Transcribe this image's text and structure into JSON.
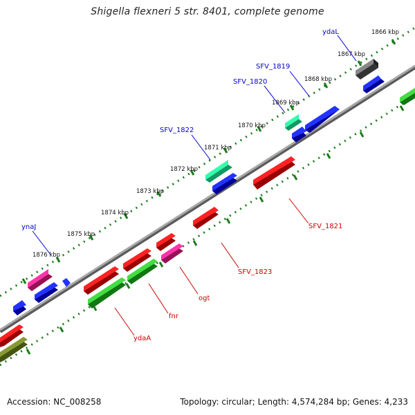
{
  "title": "Shigella flexneri 5 str. 8401, complete genome",
  "footer": {
    "accession": "Accession: NC_008258",
    "summary": "Topology: circular; Length: 4,574,284 bp; Genes: 4,233"
  },
  "ticks": [
    "1866 kbp",
    "1867 kbp",
    "1868 kbp",
    "1869 kbp",
    "1870 kbp",
    "1871 kbp",
    "1872 kbp",
    "1873 kbp",
    "1874 kbp",
    "1875 kbp",
    "1876 kbp"
  ],
  "labels": {
    "ydaL": "ydaL",
    "SFV_1819": "SFV_1819",
    "SFV_1820": "SFV_1820",
    "SFV_1822": "SFV_1822",
    "ynaJ": "ynaJ",
    "SFV_1821": "SFV_1821",
    "SFV_1823": "SFV_1823",
    "ogt": "ogt",
    "fnr": "fnr",
    "ydaA": "ydaA"
  },
  "colors": {
    "forward_label": "#0000cc",
    "reverse_label": "#cc0000",
    "backbone": "#8c8c8c",
    "tick_mark": "#1a7a1a",
    "blue": "#0000ee",
    "red": "#ee0000",
    "green": "#33bb33",
    "mint": "#22ee99",
    "magenta": "#ee2299",
    "gray": "#666666",
    "olive": "#779922"
  }
}
